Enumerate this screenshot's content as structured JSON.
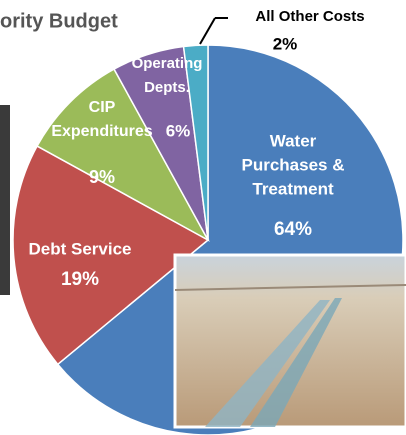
{
  "chart_data": {
    "type": "pie",
    "title": "ority Budget",
    "categories": [
      [
        "Water",
        "Purchases &",
        "Treatment"
      ],
      [
        "Debt Service"
      ],
      [
        "CIP",
        "Expenditures"
      ],
      [
        "Operating",
        "Depts."
      ],
      [
        "All Other Costs"
      ]
    ],
    "values": [
      64,
      19,
      9,
      6,
      2
    ],
    "value_labels": [
      "64%",
      "19%",
      "9%",
      "6%",
      "2%"
    ],
    "colors": [
      "#4a7ebb",
      "#c0504d",
      "#9bbb59",
      "#8064a2",
      "#4bacc6"
    ]
  }
}
